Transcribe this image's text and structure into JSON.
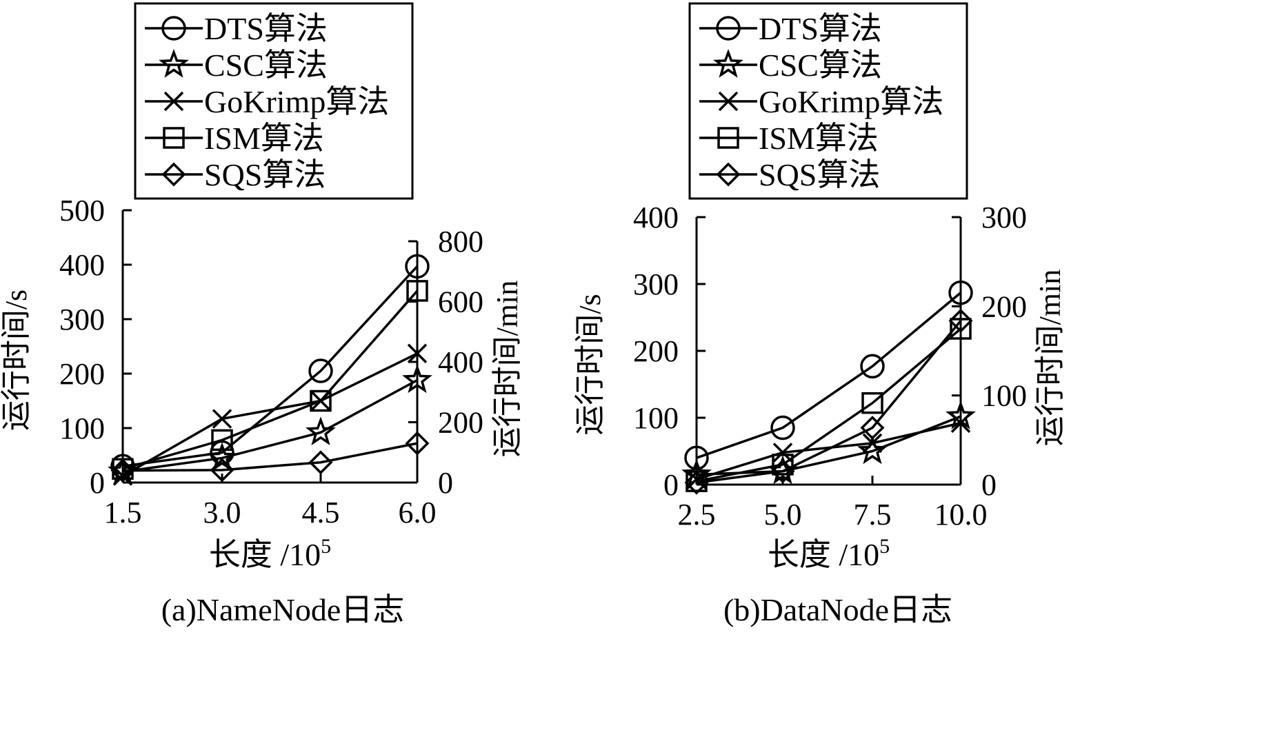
{
  "legend_labels": [
    "DTS算法",
    "CSC算法",
    "GoKrimp算法",
    "ISM算法",
    "SQS算法"
  ],
  "chart_data": [
    {
      "type": "line",
      "caption": "(a)NameNode日志",
      "xlabel": "长度 /10",
      "xlabel_sup": "5",
      "ylabel_left": "运行时间/s",
      "ylabel_right": "运行时间/min",
      "x_ticks": [
        "1.5",
        "3.0",
        "4.5",
        "6.0"
      ],
      "categories": [
        1.5,
        3.0,
        4.5,
        6.0
      ],
      "y_left_ticks": [
        0,
        100,
        200,
        300,
        400,
        500
      ],
      "y_right_ticks": [
        0,
        200,
        400,
        600,
        800
      ],
      "ylim_left": [
        0,
        500
      ],
      "ylim_right": [
        0,
        800
      ],
      "grid": false,
      "legend_position": "top",
      "series": [
        {
          "name": "DTS算法",
          "marker": "circle",
          "values": [
            30,
            55,
            205,
            397
          ]
        },
        {
          "name": "CSC算法",
          "marker": "star",
          "values": [
            20,
            45,
            92,
            188
          ]
        },
        {
          "name": "GoKrimp算法",
          "marker": "x",
          "values": [
            12,
            117,
            150,
            237
          ]
        },
        {
          "name": "ISM算法",
          "marker": "square",
          "values": [
            25,
            78,
            150,
            352
          ]
        },
        {
          "name": "SQS算法",
          "marker": "diamond",
          "values": [
            22,
            23,
            37,
            72
          ]
        }
      ]
    },
    {
      "type": "line",
      "caption": "(b)DataNode日志",
      "xlabel": "长度 /10",
      "xlabel_sup": "5",
      "ylabel_left": "运行时间/s",
      "ylabel_right": "运行时间/min",
      "x_ticks": [
        "2.5",
        "5.0",
        "7.5",
        "10.0"
      ],
      "categories": [
        2.5,
        5.0,
        7.5,
        10.0
      ],
      "y_left_ticks": [
        0,
        100,
        200,
        300,
        400
      ],
      "y_right_ticks": [
        0,
        100,
        200,
        300
      ],
      "ylim_left": [
        0,
        400
      ],
      "ylim_right": [
        0,
        300
      ],
      "grid": false,
      "legend_position": "top",
      "series": [
        {
          "name": "DTS算法",
          "marker": "circle",
          "values": [
            40,
            85,
            177,
            287
          ]
        },
        {
          "name": "CSC算法",
          "marker": "star",
          "values": [
            15,
            20,
            50,
            102
          ]
        },
        {
          "name": "GoKrimp算法",
          "marker": "x",
          "values": [
            8,
            48,
            62,
            92
          ]
        },
        {
          "name": "ISM算法",
          "marker": "square",
          "values": [
            5,
            30,
            122,
            233
          ]
        },
        {
          "name": "SQS算法",
          "marker": "diamond",
          "values": [
            3,
            20,
            85,
            245
          ]
        }
      ]
    }
  ]
}
